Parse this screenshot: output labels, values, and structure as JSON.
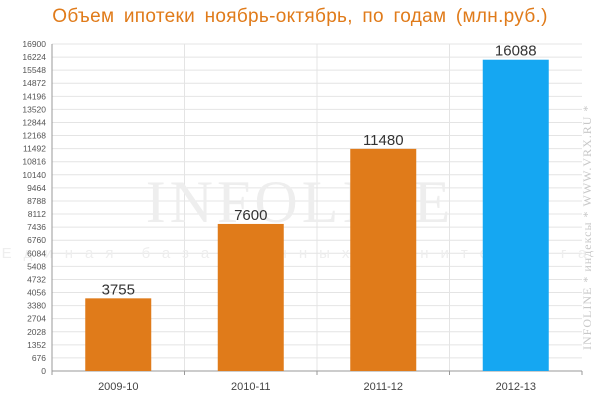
{
  "title": "Объем ипотеки ноябрь-октябрь, по годам (млн.руб.)",
  "colors": {
    "title": "#e07b1a",
    "bar_default": "#e07b1a",
    "bar_highlight": "#15a7f2",
    "grid": "#e4e4e4",
    "axis": "#999999"
  },
  "watermark": {
    "main": "INFOLINE",
    "sub": "Единая база данных мониторинга",
    "side": "INFOLINE * индексы * WWW.VRX.RU *"
  },
  "chart_data": {
    "type": "bar",
    "categories": [
      "2009-10",
      "2010-11",
      "2011-12",
      "2012-13"
    ],
    "values": [
      3755,
      7600,
      11480,
      16088
    ],
    "highlight_index": 3,
    "title": "Объем ипотеки ноябрь-октябрь, по годам (млн.руб.)",
    "xlabel": "",
    "ylabel": "",
    "ylim": [
      0,
      16900
    ],
    "yticks": [
      0,
      676,
      1352,
      2028,
      2704,
      3380,
      4056,
      4732,
      5408,
      6084,
      6760,
      7436,
      8112,
      8788,
      9464,
      10140,
      10816,
      11492,
      12168,
      12844,
      13520,
      14196,
      14872,
      15548,
      16224,
      16900
    ],
    "grid": true,
    "legend": "none"
  }
}
